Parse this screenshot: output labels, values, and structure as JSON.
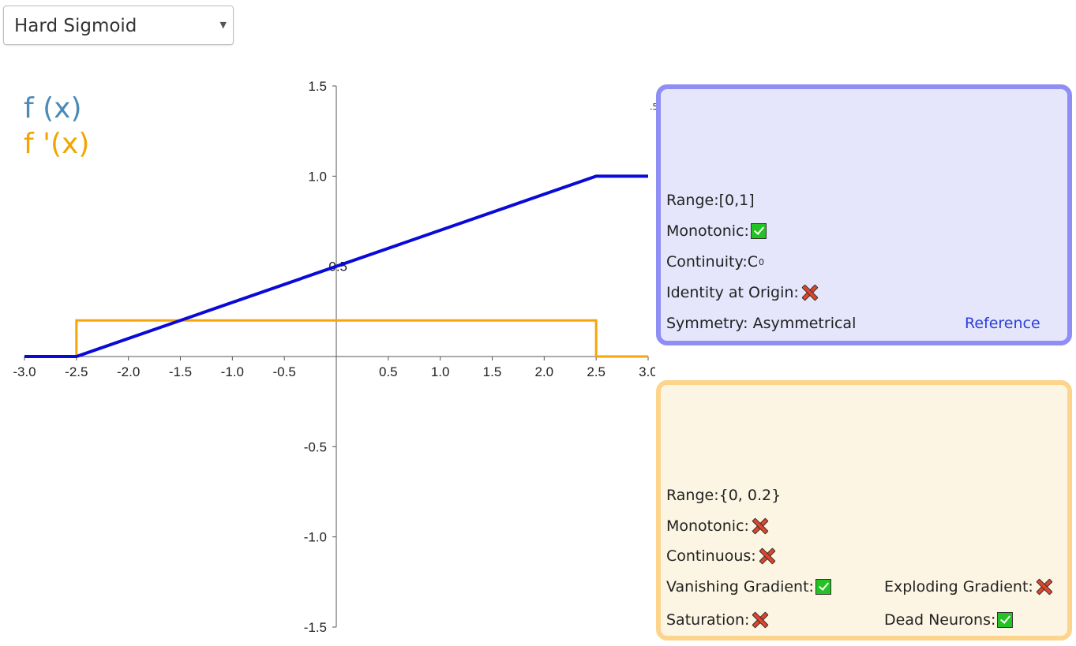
{
  "dropdown": {
    "selected": "Hard Sigmoid"
  },
  "legend": {
    "fx": "f (x)",
    "fpx": "f '(x)"
  },
  "colors": {
    "function": "#0a0ad8",
    "derivative": "#f5a50a",
    "legend_fx": "#4a8ab8",
    "legend_fpx": "#f0a500"
  },
  "chart_data": {
    "type": "line",
    "xlim": [
      -3.0,
      3.0
    ],
    "ylim": [
      -1.5,
      1.5
    ],
    "x_ticks": [
      "-3.0",
      "-2.5",
      "-2.0",
      "-1.5",
      "-1.0",
      "-0.5",
      "0.5",
      "1.0",
      "1.5",
      "2.0",
      "2.5",
      "3.0"
    ],
    "y_ticks": [
      "1.5",
      "1.0",
      "0.5",
      "-0.5",
      "-1.0",
      "-1.5"
    ],
    "series": [
      {
        "name": "f (x)",
        "x": [
          -3.0,
          -2.5,
          2.5,
          3.0
        ],
        "y": [
          0,
          0,
          1,
          1
        ]
      },
      {
        "name": "f '(x)",
        "x": [
          -3.0,
          -2.5,
          -2.5,
          2.5,
          2.5,
          3.0
        ],
        "y": [
          0,
          0,
          0.2,
          0.2,
          0,
          0
        ]
      }
    ]
  },
  "stray_label": ".5",
  "function_panel": {
    "range_label": "Range:",
    "range_value": "[0,1]",
    "monotonic_label": "Monotonic:",
    "continuity_label": "Continuity:",
    "continuity_value": "C",
    "continuity_sup": "0",
    "identity_label": "Identity at Origin:",
    "symmetry_label": "Symmetry:",
    "symmetry_value": " Asymmetrical",
    "reference_link": "Reference"
  },
  "derivative_panel": {
    "range_label": "Range:",
    "range_value": "{0, 0.2}",
    "monotonic_label": "Monotonic:",
    "continuous_label": "Continuous:",
    "vanishing_label": "Vanishing Gradient:",
    "exploding_label": "Exploding Gradient:",
    "saturation_label": "Saturation:",
    "dead_label": "Dead Neurons:"
  }
}
